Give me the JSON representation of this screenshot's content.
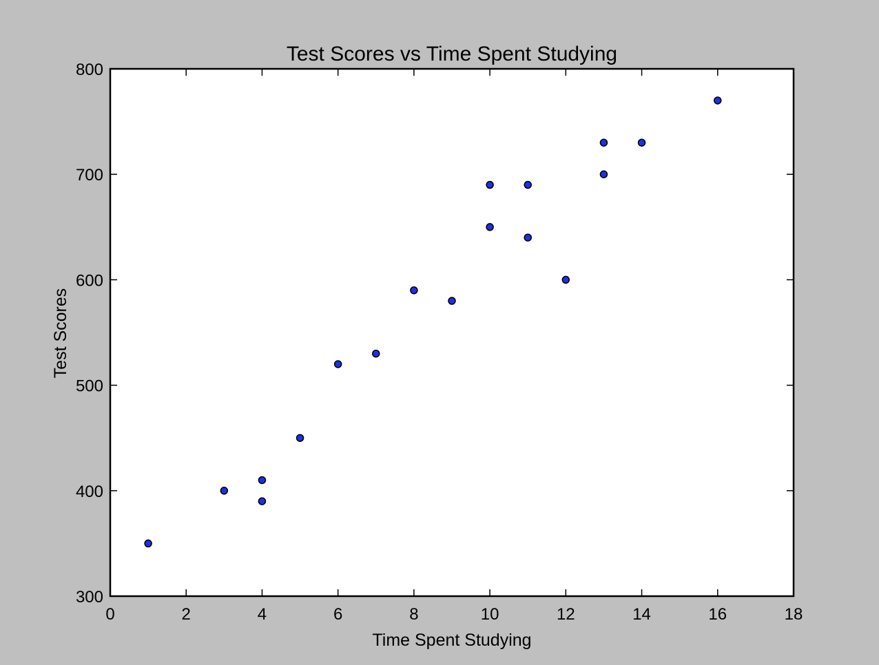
{
  "chart_data": {
    "type": "scatter",
    "title": "Test Scores vs Time Spent Studying",
    "xlabel": "Time Spent Studying",
    "ylabel": "Test Scores",
    "xlim": [
      0,
      18
    ],
    "ylim": [
      300,
      800
    ],
    "xticks": [
      "0",
      "2",
      "4",
      "6",
      "8",
      "10",
      "12",
      "14",
      "16",
      "18"
    ],
    "yticks": [
      "300",
      "400",
      "500",
      "600",
      "700",
      "800"
    ],
    "grid": false,
    "marker_color": "#1f2fe6",
    "background": "#bfbfbf",
    "plot_background": "#ffffff",
    "points": [
      {
        "x": 1,
        "y": 350
      },
      {
        "x": 3,
        "y": 400
      },
      {
        "x": 4,
        "y": 410
      },
      {
        "x": 4,
        "y": 390
      },
      {
        "x": 5,
        "y": 450
      },
      {
        "x": 6,
        "y": 520
      },
      {
        "x": 7,
        "y": 530
      },
      {
        "x": 8,
        "y": 590
      },
      {
        "x": 9,
        "y": 580
      },
      {
        "x": 10,
        "y": 690
      },
      {
        "x": 10,
        "y": 650
      },
      {
        "x": 11,
        "y": 690
      },
      {
        "x": 11,
        "y": 640
      },
      {
        "x": 12,
        "y": 600
      },
      {
        "x": 13,
        "y": 730
      },
      {
        "x": 13,
        "y": 700
      },
      {
        "x": 14,
        "y": 730
      },
      {
        "x": 16,
        "y": 770
      }
    ]
  }
}
